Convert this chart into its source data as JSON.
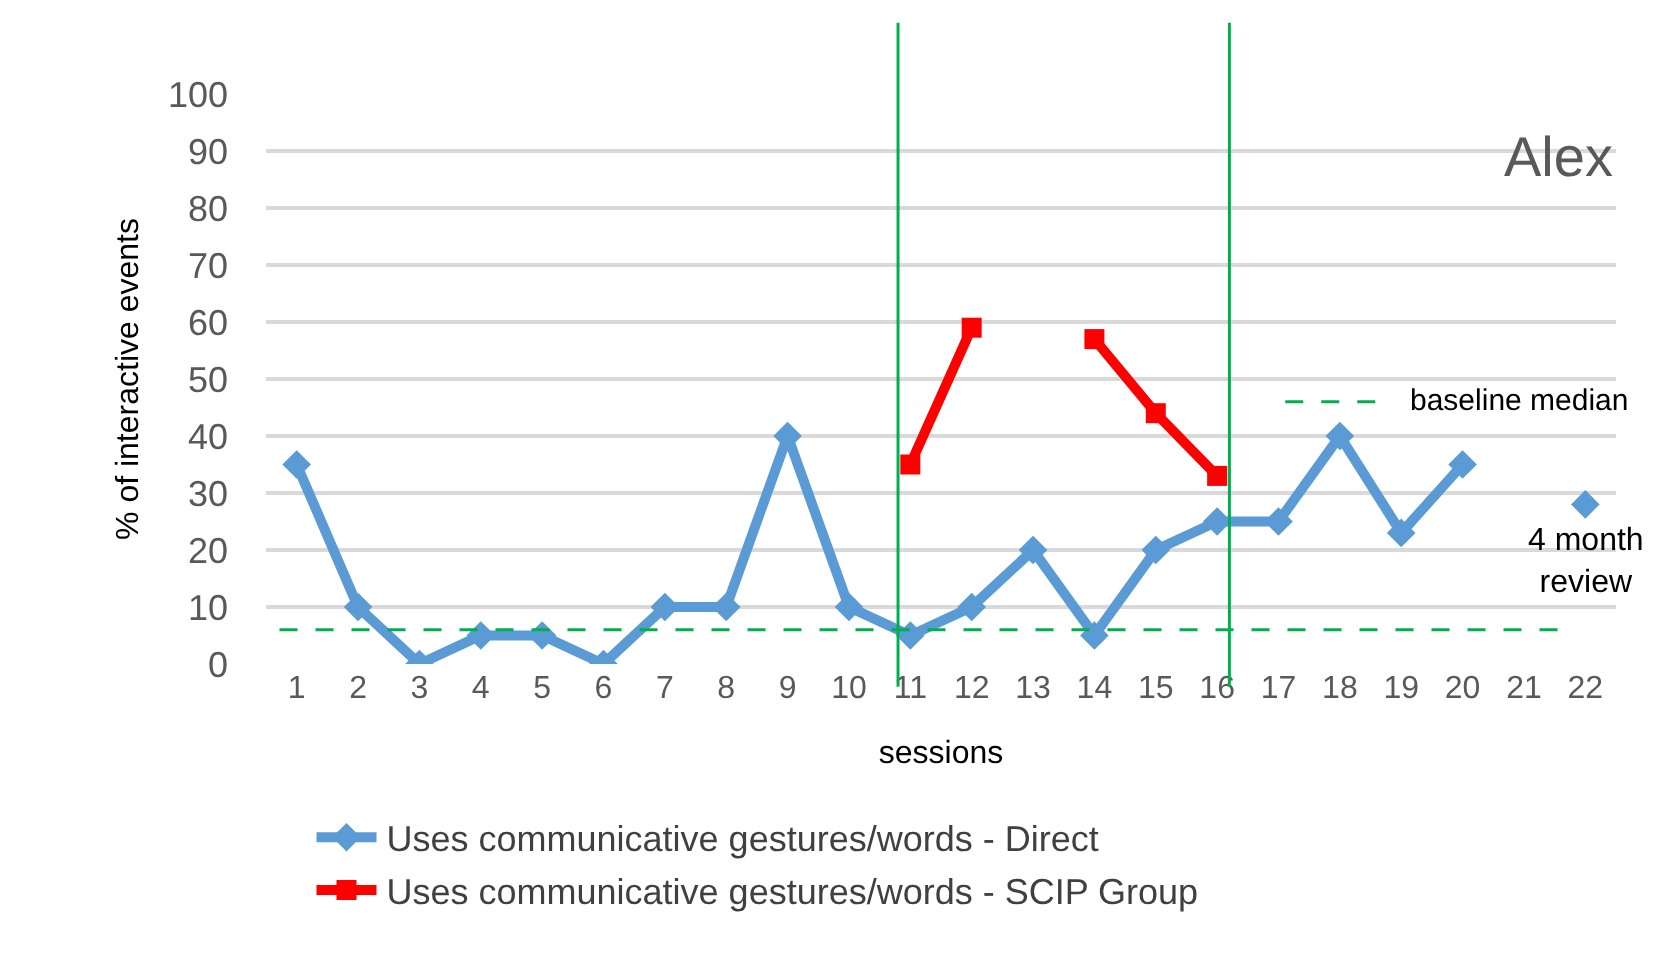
{
  "chart_data": {
    "type": "line",
    "xlabel": "sessions",
    "ylabel": "% of interactive events",
    "x": [
      1,
      2,
      3,
      4,
      5,
      6,
      7,
      8,
      9,
      10,
      11,
      12,
      13,
      14,
      15,
      16,
      17,
      18,
      19,
      20,
      21,
      22
    ],
    "series": [
      {
        "name": "Uses communicative gestures/words - Direct",
        "color": "#5b9bd5",
        "marker": "diamond",
        "values": [
          35,
          10,
          0,
          5,
          5,
          0,
          10,
          10,
          40,
          10,
          5,
          10,
          20,
          5,
          20,
          25,
          25,
          40,
          23,
          35,
          null,
          28
        ]
      },
      {
        "name": "Uses communicative gestures/words - SCIP Group",
        "color": "#ff0000",
        "marker": "square",
        "values": [
          null,
          null,
          null,
          null,
          null,
          null,
          null,
          null,
          null,
          null,
          35,
          59,
          null,
          57,
          44,
          33,
          null,
          null,
          null,
          null,
          null,
          null
        ]
      }
    ],
    "xlim": [
      0.5,
      22.5
    ],
    "xticks": [
      1,
      2,
      3,
      4,
      5,
      6,
      7,
      8,
      9,
      10,
      11,
      12,
      13,
      14,
      15,
      16,
      17,
      18,
      19,
      20,
      21,
      22
    ],
    "ylim": [
      0,
      100
    ],
    "yticks": [
      0,
      10,
      20,
      30,
      40,
      50,
      60,
      70,
      80,
      90,
      100
    ],
    "grid": "y",
    "legend": "bottom",
    "line_style": "solid",
    "ref_lines": [
      {
        "axis": "y",
        "value": 6,
        "label": "baseline median",
        "color": "#00b050",
        "line_style": "dashed"
      },
      {
        "axis": "x",
        "value": 10.8,
        "color": "#00b050",
        "line_style": "solid"
      },
      {
        "axis": "x",
        "value": 16.2,
        "color": "#00b050",
        "line_style": "solid"
      }
    ],
    "annotations": [
      "Alex",
      {
        "text": "4 month\nreview",
        "x": 22,
        "y": 28
      }
    ]
  }
}
